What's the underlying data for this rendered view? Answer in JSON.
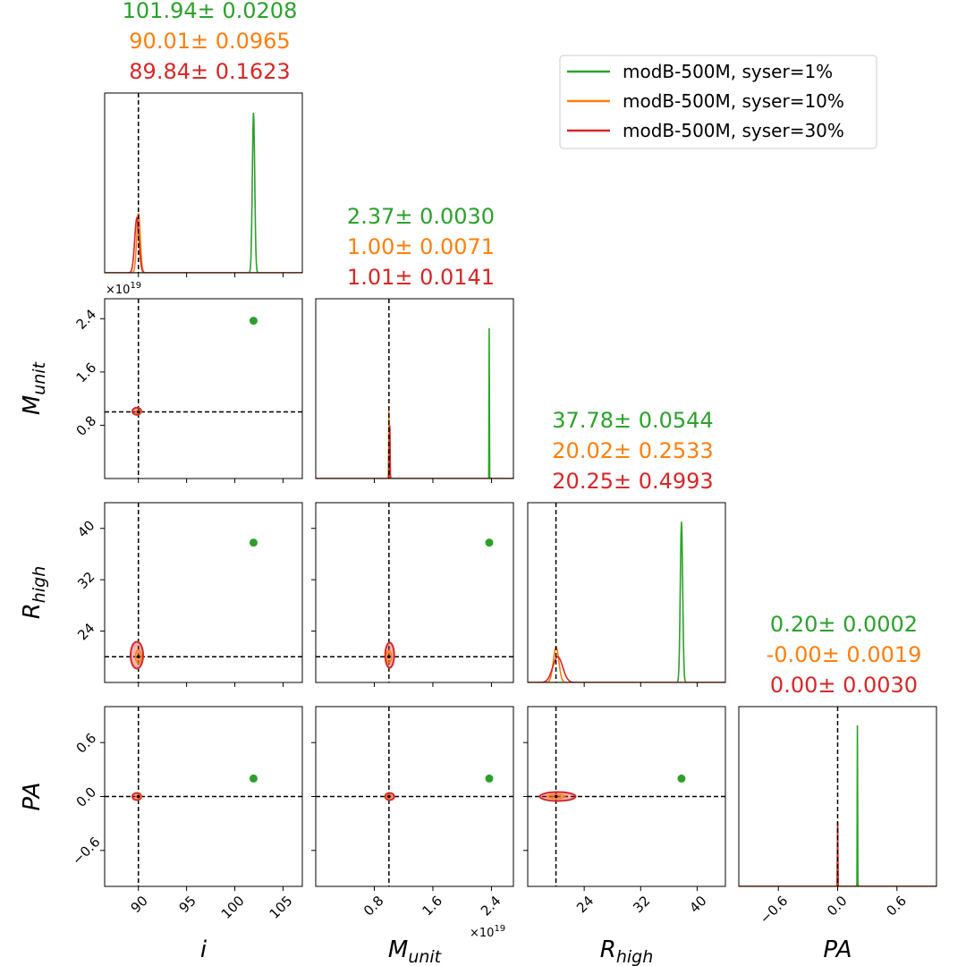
{
  "colors": {
    "syser1": "#2ca02c",
    "syser10": "#ff7f0e",
    "syser30": "#d62728",
    "truth": "#000000",
    "axes": "#000000"
  },
  "legend": {
    "placement": "top-right",
    "entries": [
      {
        "label": "modB-500M, syser=1%",
        "color": "#2ca02c"
      },
      {
        "label": "modB-500M, syser=10%",
        "color": "#ff7f0e"
      },
      {
        "label": "modB-500M, syser=30%",
        "color": "#d62728"
      }
    ]
  },
  "chart_data": {
    "type": "corner",
    "parameters": [
      {
        "key": "i",
        "label": "i",
        "range": [
          86.5,
          107
        ],
        "ticks": [
          90,
          95,
          100,
          105
        ],
        "tick_labels": [
          "90",
          "95",
          "100",
          "105"
        ],
        "truth": 90,
        "sci": ""
      },
      {
        "key": "Munit",
        "label": "M",
        "label_sub": "unit",
        "range": [
          0.0,
          2.7
        ],
        "ticks": [
          0.8,
          1.6,
          2.4
        ],
        "tick_labels": [
          "0.8",
          "1.6",
          "2.4"
        ],
        "truth": 1.0,
        "sci": "×10"
      },
      {
        "key": "Rhigh",
        "label": "R",
        "label_sub": "high",
        "range": [
          16,
          44
        ],
        "ticks": [
          24,
          32,
          40
        ],
        "tick_labels": [
          "24",
          "32",
          "40"
        ],
        "truth": 20,
        "sci": ""
      },
      {
        "key": "PA",
        "label": "PA",
        "range": [
          -1.0,
          1.0
        ],
        "ticks": [
          -0.6,
          0.0,
          0.6
        ],
        "tick_labels": [
          "−0.6",
          "0.0",
          "0.6"
        ],
        "truth": 0.0,
        "sci": ""
      }
    ],
    "sci_exponent": "19",
    "series": [
      {
        "name": "modB-500M, syser=1%",
        "color": "#2ca02c",
        "means": [
          101.94,
          2.37,
          37.78,
          0.2
        ],
        "stds": [
          0.0208,
          0.003,
          0.0544,
          0.0002
        ],
        "peak_heights": [
          1.0,
          1.0,
          1.0,
          1.0
        ],
        "plot_widths": [
          0.12,
          0.015,
          0.12,
          0.018
        ]
      },
      {
        "name": "modB-500M, syser=10%",
        "color": "#ff7f0e",
        "means": [
          90.01,
          1.0,
          20.02,
          -0.0
        ],
        "stds": [
          0.0965,
          0.0071,
          0.2533,
          0.0019
        ],
        "peak_heights": [
          0.37,
          0.44,
          0.22,
          0.38
        ],
        "plot_widths": [
          0.18,
          0.025,
          0.28,
          0.012
        ]
      },
      {
        "name": "modB-500M, syser=30%",
        "color": "#d62728",
        "means": [
          89.84,
          1.01,
          20.25,
          0.0
        ],
        "stds": [
          0.1623,
          0.0141,
          0.4993,
          0.003
        ],
        "peak_heights": [
          0.34,
          0.4,
          0.16,
          0.4
        ],
        "plot_widths": [
          0.22,
          0.03,
          0.5,
          0.014
        ]
      }
    ],
    "titles": [
      [
        "101.94± 0.0208",
        "90.01± 0.0965",
        "89.84± 0.1623"
      ],
      [
        "2.37± 0.0030",
        "1.00± 0.0071",
        "1.01± 0.0141"
      ],
      [
        "37.78± 0.0544",
        "20.02± 0.2533",
        "20.25± 0.4993"
      ],
      [
        "0.20± 0.0002",
        "-0.00± 0.0019",
        "0.00± 0.0030"
      ]
    ],
    "grid": false
  }
}
